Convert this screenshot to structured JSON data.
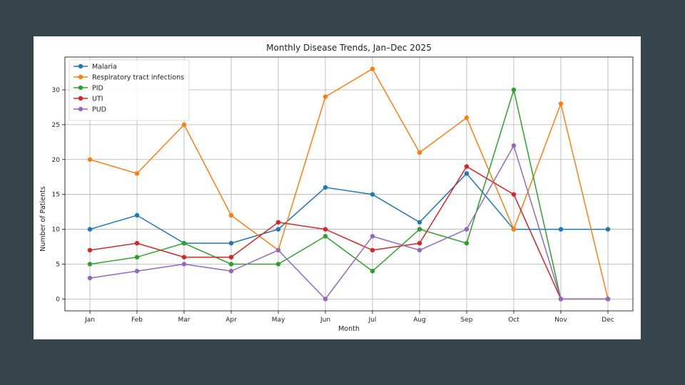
{
  "chart_data": {
    "type": "line",
    "title": "Monthly Disease Trends, Jan–Dec 2025",
    "xlabel": "Month",
    "ylabel": "Number of Patients",
    "categories": [
      "Jan",
      "Feb",
      "Mar",
      "Apr",
      "May",
      "Jun",
      "Jul",
      "Aug",
      "Sep",
      "Oct",
      "Nov",
      "Dec"
    ],
    "ylim": [
      -1.7,
      34.7
    ],
    "yticks": [
      0,
      5,
      10,
      15,
      20,
      25,
      30
    ],
    "grid": true,
    "legend_position": "top-left",
    "series": [
      {
        "name": "Malaria",
        "color": "#1f77b4",
        "values": [
          10,
          12,
          8,
          8,
          10,
          16,
          15,
          11,
          18,
          10,
          10,
          10
        ]
      },
      {
        "name": "Respiratory tract infections",
        "color": "#ff7f0e",
        "values": [
          20,
          18,
          25,
          12,
          7,
          29,
          33,
          21,
          26,
          10,
          28,
          0
        ]
      },
      {
        "name": "PID",
        "color": "#2ca02c",
        "values": [
          5,
          6,
          8,
          5,
          5,
          9,
          4,
          10,
          8,
          30,
          0,
          0
        ]
      },
      {
        "name": "UTI",
        "color": "#d62728",
        "values": [
          7,
          8,
          6,
          6,
          11,
          10,
          7,
          8,
          19,
          15,
          0,
          0
        ]
      },
      {
        "name": "PUD",
        "color": "#9467bd",
        "values": [
          3,
          4,
          5,
          4,
          7,
          0,
          9,
          7,
          10,
          22,
          0,
          0
        ]
      }
    ]
  }
}
